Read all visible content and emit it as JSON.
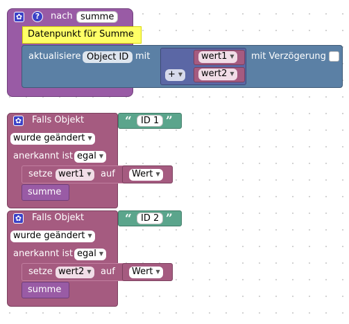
{
  "function_block": {
    "prefix": "nach",
    "name": "summe",
    "comment": "Datenpunkt für Summe",
    "update_label": "aktualisiere",
    "object_id": "Object ID",
    "with_label": "mit",
    "delay_label": "mit Verzögerung",
    "operator": "+",
    "inputs": [
      "wert1",
      "wert2"
    ]
  },
  "triggers": [
    {
      "header": "Falls Objekt",
      "id_value": "ID 1",
      "condition": "wurde geändert",
      "ack_label": "anerkannt ist",
      "ack_value": "egal",
      "set_label": "setze",
      "variable": "wert1",
      "to_label": "auf",
      "value": "Wert",
      "call": "summe"
    },
    {
      "header": "Falls Objekt",
      "id_value": "ID 2",
      "condition": "wurde geändert",
      "ack_label": "anerkannt ist",
      "ack_value": "egal",
      "set_label": "setze",
      "variable": "wert2",
      "to_label": "auf",
      "value": "Wert",
      "call": "summe"
    }
  ],
  "icons": {
    "gear": "gear-icon",
    "help": "help-icon",
    "dropdown": "dropdown-arrow-icon",
    "quote": "quote-icon"
  },
  "colors": {
    "function_purple": "#995ba5",
    "trigger_magenta": "#a55b80",
    "action_blue": "#5b80a5",
    "variable_pink": "#a55b80",
    "operator_indigo": "#5b67a5",
    "text_green": "#5ba58c",
    "call_purple": "#995ba5",
    "comment_yellow": "#ffff66",
    "icon_blue": "#3a41c7"
  }
}
